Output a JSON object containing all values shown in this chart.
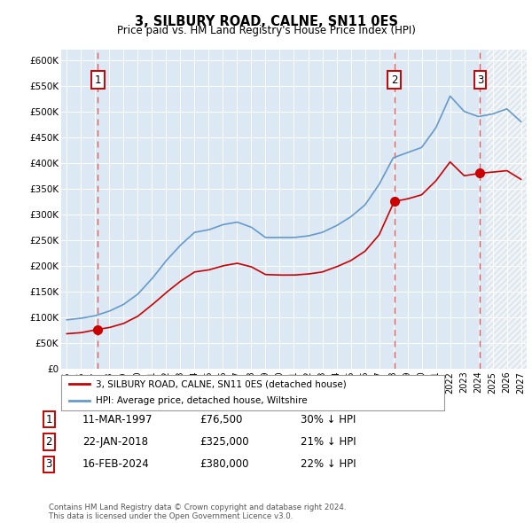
{
  "title": "3, SILBURY ROAD, CALNE, SN11 0ES",
  "subtitle": "Price paid vs. HM Land Registry's House Price Index (HPI)",
  "ylim": [
    0,
    620000
  ],
  "yticks": [
    0,
    50000,
    100000,
    150000,
    200000,
    250000,
    300000,
    350000,
    400000,
    450000,
    500000,
    550000,
    600000
  ],
  "ytick_labels": [
    "£0",
    "£50K",
    "£100K",
    "£150K",
    "£200K",
    "£250K",
    "£300K",
    "£350K",
    "£400K",
    "£450K",
    "£500K",
    "£550K",
    "£600K"
  ],
  "background_color": "#dce9f5",
  "hpi_color": "#6699cc",
  "price_color": "#cc0000",
  "dashed_line_color": "#ee5555",
  "sale_year_decimals": [
    1997.19,
    2018.06,
    2024.12
  ],
  "sale_prices": [
    76500,
    325000,
    380000
  ],
  "sale_labels": [
    "1",
    "2",
    "3"
  ],
  "hatch_start_year": 2024.5,
  "xlim_left": 1994.6,
  "xlim_right": 2027.4,
  "legend_label_red": "3, SILBURY ROAD, CALNE, SN11 0ES (detached house)",
  "legend_label_blue": "HPI: Average price, detached house, Wiltshire",
  "table_rows": [
    [
      "1",
      "11-MAR-1997",
      "£76,500",
      "30% ↓ HPI"
    ],
    [
      "2",
      "22-JAN-2018",
      "£325,000",
      "21% ↓ HPI"
    ],
    [
      "3",
      "16-FEB-2024",
      "£380,000",
      "22% ↓ HPI"
    ]
  ],
  "footer": "Contains HM Land Registry data © Crown copyright and database right 2024.\nThis data is licensed under the Open Government Licence v3.0.",
  "hpi_key_years": [
    1995,
    1996,
    1997,
    1998,
    1999,
    2000,
    2001,
    2002,
    2003,
    2004,
    2005,
    2006,
    2007,
    2008,
    2009,
    2010,
    2011,
    2012,
    2013,
    2014,
    2015,
    2016,
    2017,
    2018,
    2019,
    2020,
    2021,
    2022,
    2023,
    2024,
    2025,
    2026,
    2027
  ],
  "hpi_key_vals": [
    95000,
    98000,
    103000,
    112000,
    125000,
    145000,
    175000,
    210000,
    240000,
    265000,
    270000,
    280000,
    285000,
    275000,
    255000,
    255000,
    255000,
    258000,
    265000,
    278000,
    295000,
    318000,
    358000,
    410000,
    420000,
    430000,
    468000,
    530000,
    500000,
    490000,
    495000,
    505000,
    480000
  ],
  "price_key_years": [
    1995,
    1996,
    1997.19,
    1998,
    1999,
    2000,
    2001,
    2002,
    2003,
    2004,
    2005,
    2006,
    2007,
    2008,
    2009,
    2010,
    2011,
    2012,
    2013,
    2014,
    2015,
    2016,
    2017,
    2018.06,
    2019,
    2020,
    2021,
    2022,
    2023,
    2024.12,
    2025,
    2026,
    2027
  ],
  "price_key_vals": [
    68000,
    70000,
    76500,
    80000,
    88000,
    102000,
    124000,
    148000,
    170000,
    188000,
    192000,
    200000,
    205000,
    198000,
    183000,
    182000,
    182000,
    184000,
    188000,
    198000,
    210000,
    228000,
    260000,
    325000,
    330000,
    338000,
    365000,
    402000,
    375000,
    380000,
    382000,
    385000,
    368000
  ]
}
